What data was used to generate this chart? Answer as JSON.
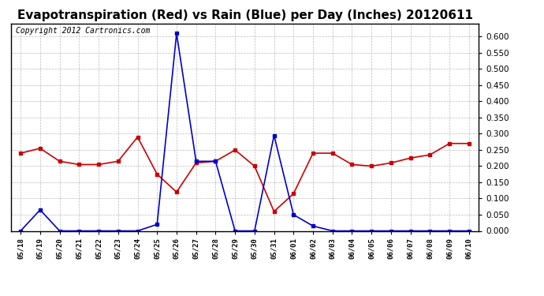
{
  "title": "Evapotranspiration (Red) vs Rain (Blue) per Day (Inches) 20120611",
  "copyright": "Copyright 2012 Cartronics.com",
  "x_labels": [
    "05/18",
    "05/19",
    "05/20",
    "05/21",
    "05/22",
    "05/23",
    "05/24",
    "05/25",
    "05/26",
    "05/27",
    "05/28",
    "05/29",
    "05/30",
    "05/31",
    "06/01",
    "06/02",
    "06/03",
    "06/04",
    "06/05",
    "06/06",
    "06/07",
    "06/08",
    "06/09",
    "06/10"
  ],
  "red_values": [
    0.24,
    0.255,
    0.215,
    0.205,
    0.205,
    0.215,
    0.29,
    0.175,
    0.12,
    0.21,
    0.215,
    0.25,
    0.2,
    0.06,
    0.115,
    0.24,
    0.24,
    0.205,
    0.2,
    0.21,
    0.225,
    0.235,
    0.27,
    0.27
  ],
  "blue_values": [
    0.0,
    0.065,
    0.0,
    0.0,
    0.0,
    0.0,
    0.0,
    0.02,
    0.61,
    0.215,
    0.215,
    0.0,
    0.0,
    0.295,
    0.05,
    0.015,
    0.0,
    0.0,
    0.0,
    0.0,
    0.0,
    0.0,
    0.0,
    0.0
  ],
  "red_color": "#cc0000",
  "blue_color": "#0000cc",
  "ylim": [
    0.0,
    0.64
  ],
  "yticks": [
    0.0,
    0.05,
    0.1,
    0.15,
    0.2,
    0.25,
    0.3,
    0.35,
    0.4,
    0.45,
    0.5,
    0.55,
    0.6
  ],
  "background_color": "#ffffff",
  "grid_color": "#aaaaaa",
  "title_fontsize": 11,
  "copyright_fontsize": 7,
  "marker": "s",
  "marker_size": 3,
  "linewidth": 1.2
}
